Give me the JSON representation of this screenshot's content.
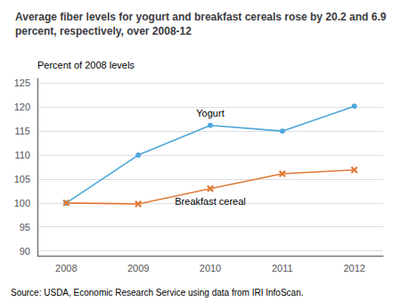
{
  "chart_data": {
    "type": "line",
    "title": "Average fiber levels for yogurt and breakfast cereals rose by 20.2 and 6.9 percent, respectively, over 2008-12",
    "ylabel": "Percent of 2008 levels",
    "annotations": [
      "Source: USDA, Economic Research Service using data from IRI InfoScan."
    ],
    "x": [
      2008,
      2009,
      2010,
      2011,
      2012
    ],
    "series": [
      {
        "name": "Yogurt",
        "color": "#4da6d9",
        "marker": "circle",
        "values": [
          100,
          110,
          116.2,
          115,
          120.2
        ]
      },
      {
        "name": "Breakfast cereal",
        "color": "#e07b39",
        "marker": "x",
        "values": [
          100,
          99.8,
          103,
          106.1,
          106.9
        ]
      }
    ],
    "xlim": [
      2007.6,
      2012.4
    ],
    "xticks": [
      2008,
      2009,
      2010,
      2011,
      2012
    ],
    "ylim": [
      89,
      126
    ],
    "yticks": [
      90,
      95,
      100,
      105,
      110,
      115,
      120,
      125
    ],
    "grid": true
  }
}
